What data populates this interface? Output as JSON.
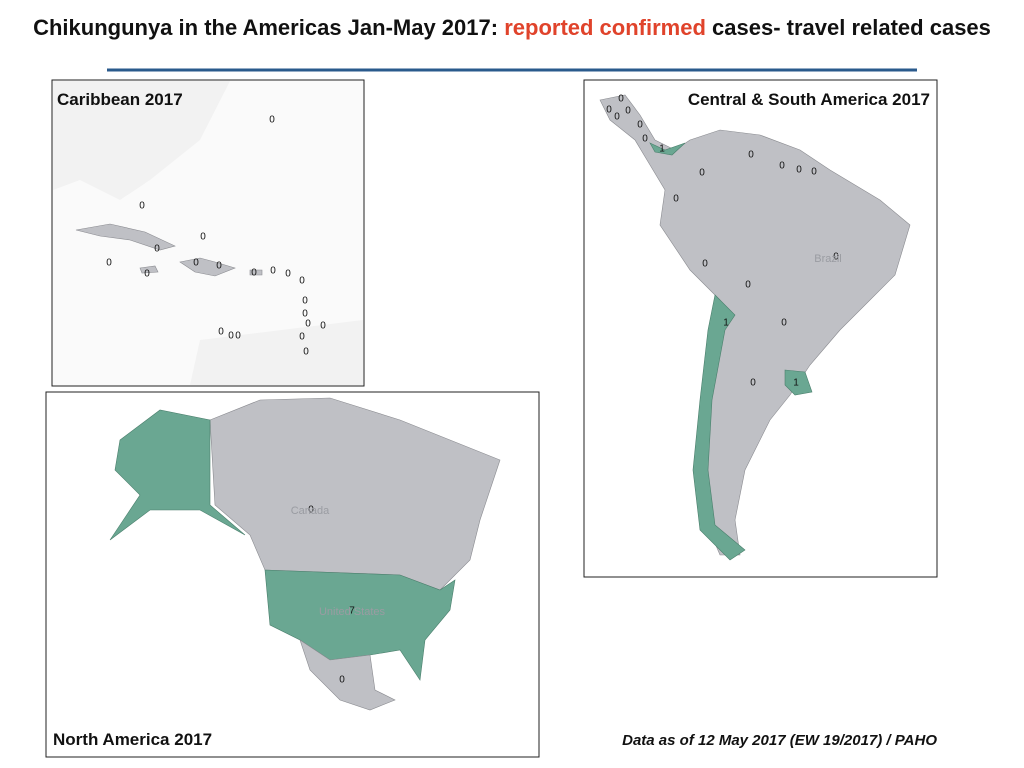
{
  "header": {
    "title_start": "Chikungunya in the Americas Jan-May 2017:",
    "title_highlight": "reported confirmed",
    "title_end": "cases- travel related cases"
  },
  "panels": {
    "caribbean": {
      "title": "Caribbean 2017",
      "counts": [
        0,
        0,
        0,
        0,
        0,
        0,
        0,
        0,
        0,
        0,
        0,
        0,
        0,
        0,
        0,
        0,
        0,
        0,
        0,
        0,
        0
      ]
    },
    "central_south": {
      "title": "Central & South America  2017",
      "counts": [
        0,
        0,
        0,
        0,
        0,
        0,
        1,
        0,
        0,
        0,
        0,
        0,
        0,
        0,
        0,
        0,
        0,
        1,
        0,
        1
      ],
      "place_names": [
        "Brazil"
      ]
    },
    "north_america": {
      "title": "North America  2017",
      "counts": [
        0,
        7,
        0
      ],
      "place_names": [
        "Canada",
        "United States"
      ]
    }
  },
  "footer": {
    "source": "Data as of 12 May 2017 (EW 19/2017) / PAHO"
  }
}
